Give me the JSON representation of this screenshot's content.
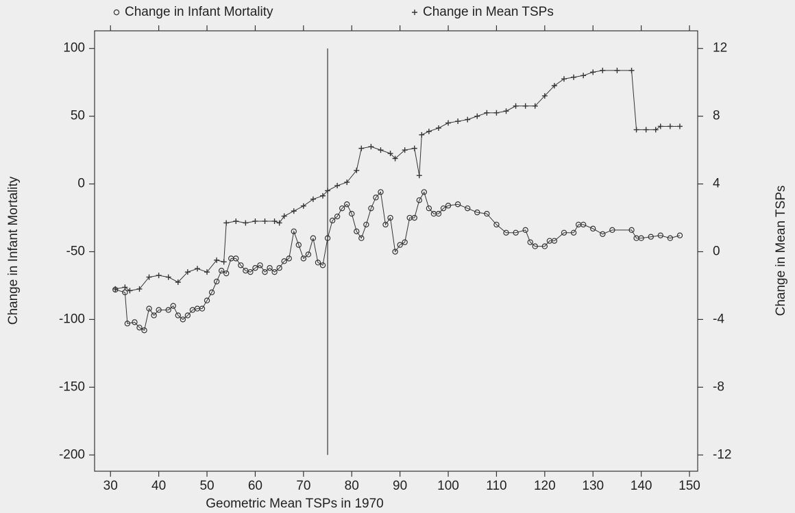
{
  "chart_data": {
    "type": "line",
    "xlabel": "Geometric Mean TSPs in 1970",
    "ylabel": "Change in Infant Mortality",
    "y2label": "Change in Mean TSPs",
    "xlim": [
      26.7,
      151.7
    ],
    "ylim": [
      -212,
      113
    ],
    "y2lim": [
      -12.96,
      13.04
    ],
    "xticks": [
      30,
      40,
      50,
      60,
      70,
      80,
      90,
      100,
      110,
      120,
      130,
      140,
      150
    ],
    "yticks": [
      -200,
      -150,
      -100,
      -50,
      0,
      50,
      100
    ],
    "y2ticks": [
      -12,
      -8,
      -4,
      0,
      4,
      8,
      12
    ],
    "vline_x": 75,
    "series": [
      {
        "name": "Change in Infant Mortality",
        "marker": "circle",
        "color": "#333333",
        "x": [
          31,
          33,
          33.5,
          35,
          36,
          37,
          38,
          39,
          40,
          42,
          43,
          44,
          45,
          46,
          47,
          48,
          49,
          50,
          51,
          52,
          53,
          54,
          55,
          56,
          57,
          58,
          59,
          60,
          61,
          62,
          63,
          64,
          65,
          66,
          67,
          68,
          69,
          70,
          71,
          72,
          73,
          74,
          75,
          76,
          77,
          78,
          79,
          80,
          81,
          82,
          83,
          84,
          85,
          86,
          87,
          88,
          89,
          90,
          91,
          92,
          93,
          94,
          95,
          96,
          97,
          98,
          99,
          100,
          102,
          104,
          106,
          108,
          110,
          112,
          114,
          116,
          117,
          118,
          120,
          121,
          122,
          124,
          126,
          127,
          128,
          130,
          132,
          134,
          138,
          139,
          140,
          142,
          144,
          146,
          148
        ],
        "values": [
          -78,
          -80,
          -103,
          -102,
          -106,
          -108,
          -92,
          -97,
          -93,
          -93,
          -90,
          -97,
          -100,
          -97,
          -93,
          -92,
          -92,
          -86,
          -80,
          -72,
          -64,
          -66,
          -55,
          -55,
          -60,
          -64,
          -65,
          -62,
          -60,
          -65,
          -62,
          -65,
          -62,
          -57,
          -55,
          -35,
          -45,
          -55,
          -52,
          -40,
          -58,
          -60,
          -40,
          -27,
          -24,
          -18,
          -15,
          -22,
          -35,
          -40,
          -30,
          -18,
          -10,
          -6,
          -30,
          -25,
          -50,
          -45,
          -43,
          -25,
          -25,
          -12,
          -6,
          -18,
          -22,
          -22,
          -18,
          -16,
          -15,
          -18,
          -21,
          -22,
          -30,
          -36,
          -36,
          -34,
          -43,
          -46,
          -46,
          -42,
          -42,
          -36,
          -36,
          -30,
          -30,
          -33,
          -37,
          -34,
          -34,
          -40,
          -40,
          -39,
          -38,
          -40,
          -38
        ]
      },
      {
        "name": "Change in Mean TSPs",
        "marker": "plus",
        "color": "#333333",
        "axis": "y2",
        "x": [
          31,
          33,
          34,
          36,
          38,
          40,
          42,
          44,
          46,
          48,
          50,
          52,
          53.5,
          54,
          56,
          58,
          60,
          62,
          64,
          65,
          66,
          68,
          70,
          72,
          74,
          75,
          77,
          79,
          81,
          82,
          84,
          86,
          88,
          89,
          91,
          93,
          94,
          94.5,
          96,
          98,
          100,
          102,
          104,
          106,
          108,
          110,
          112,
          114,
          116,
          118,
          120,
          122,
          124,
          126,
          128,
          130,
          132,
          135,
          138,
          139,
          141,
          143,
          144,
          146,
          148
        ],
        "values": [
          -2.2,
          -2.1,
          -2.3,
          -2.2,
          -1.5,
          -1.4,
          -1.5,
          -1.8,
          -1.2,
          -1.0,
          -1.2,
          -0.5,
          -0.6,
          1.7,
          1.8,
          1.7,
          1.8,
          1.8,
          1.8,
          1.7,
          2.1,
          2.4,
          2.7,
          3.1,
          3.3,
          3.6,
          3.9,
          4.1,
          4.8,
          6.1,
          6.2,
          6.0,
          5.8,
          5.5,
          6.0,
          6.1,
          4.5,
          6.9,
          7.1,
          7.3,
          7.6,
          7.7,
          7.8,
          8.0,
          8.2,
          8.2,
          8.3,
          8.6,
          8.6,
          8.6,
          9.2,
          9.8,
          10.2,
          10.3,
          10.4,
          10.6,
          10.7,
          10.7,
          10.7,
          7.2,
          7.2,
          7.2,
          7.4,
          7.4,
          7.4
        ]
      }
    ]
  }
}
